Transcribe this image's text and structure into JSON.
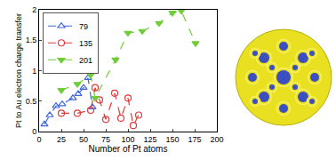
{
  "chart_data": {
    "type": "line",
    "xlabel": "Number of Pt atoms",
    "ylabel": "Pt to Au electron charge transfer",
    "xlim": [
      0,
      200
    ],
    "xticks": [
      0,
      25,
      50,
      75,
      100,
      125,
      150,
      175,
      200
    ],
    "ylim": [
      0,
      2
    ],
    "yticks": [
      0,
      0.5,
      1,
      1.5,
      2
    ],
    "legend": "top-left",
    "series": [
      {
        "name": "79",
        "color": "#3f66d8",
        "marker": "triangle-up-open",
        "line_style": "dash",
        "x": [
          6,
          12,
          19,
          26,
          38,
          44,
          50,
          55,
          60
        ],
        "values": [
          0.12,
          0.27,
          0.42,
          0.45,
          0.55,
          0.62,
          0.72,
          0.88,
          0.4
        ]
      },
      {
        "name": "135",
        "color": "#e03a3a",
        "marker": "circle-open",
        "line_style": "dash",
        "x": [
          25,
          43,
          58,
          63,
          68,
          75,
          85,
          92,
          100,
          106,
          112
        ],
        "values": [
          0.3,
          0.3,
          0.35,
          0.72,
          0.52,
          0.2,
          0.63,
          0.22,
          0.55,
          0.1,
          0.27
        ]
      },
      {
        "name": "201",
        "color": "#72cc3a",
        "marker": "triangle-down",
        "line_style": "dash",
        "x": [
          25,
          43,
          58,
          63,
          86,
          100,
          116,
          135,
          150,
          160,
          176
        ],
        "values": [
          0.68,
          0.78,
          0.93,
          0.55,
          1.18,
          1.62,
          1.65,
          1.78,
          1.95,
          1.98,
          1.45
        ]
      }
    ]
  }
}
